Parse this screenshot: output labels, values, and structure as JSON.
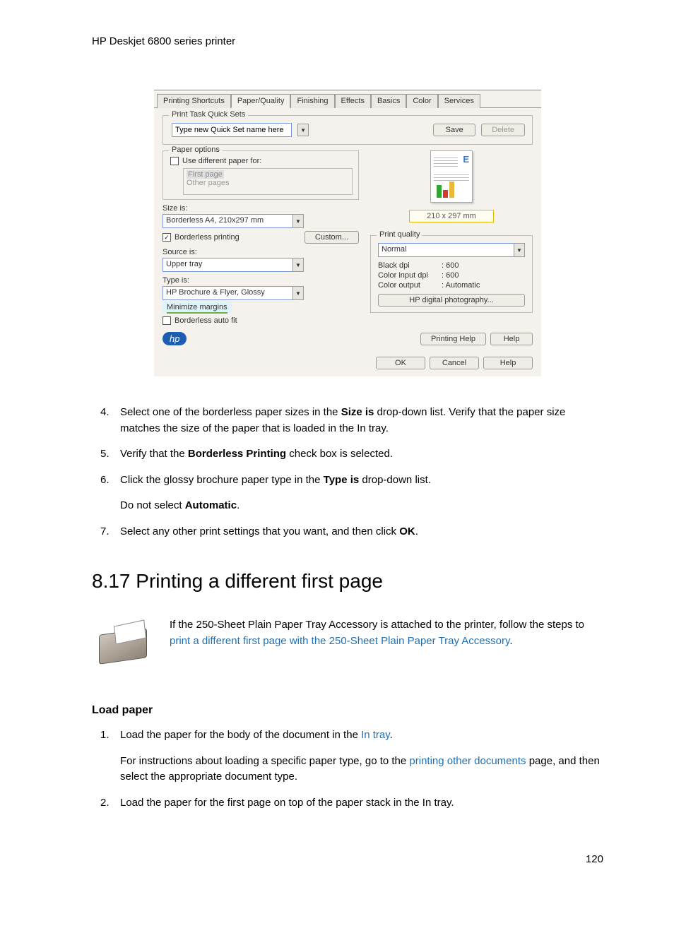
{
  "header": "HP Deskjet 6800 series printer",
  "dialog": {
    "tabs": [
      "Printing Shortcuts",
      "Paper/Quality",
      "Finishing",
      "Effects",
      "Basics",
      "Color",
      "Services"
    ],
    "active_tab": 1,
    "quickset": {
      "group": "Print Task Quick Sets",
      "placeholder": "Type new Quick Set name here",
      "save": "Save",
      "delete": "Delete"
    },
    "paper_options": {
      "group": "Paper options",
      "use_diff_label": "Use different paper for:",
      "first_page": "First page",
      "other_pages": "Other pages"
    },
    "size": {
      "label": "Size is:",
      "value": "Borderless A4, 210x297 mm",
      "borderless_label": "Borderless printing",
      "custom": "Custom..."
    },
    "source": {
      "label": "Source is:",
      "value": "Upper tray"
    },
    "type": {
      "label": "Type is:",
      "value": "HP Brochure & Flyer, Glossy"
    },
    "highlight_label": "Minimize margins",
    "borderless_auto": "Borderless auto fit",
    "dimensions": "210 x 297 mm",
    "print_quality": {
      "group": "Print quality",
      "value": "Normal",
      "rows": [
        {
          "k": "Black dpi",
          "v": ": 600"
        },
        {
          "k": "Color input dpi",
          "v": ": 600"
        },
        {
          "k": "Color output",
          "v": ": Automatic"
        }
      ],
      "hp_button": "HP digital photography..."
    },
    "logo": "hp",
    "printing_help": "Printing Help",
    "help": "Help",
    "ok": "OK",
    "cancel": "Cancel"
  },
  "steps_a": [
    {
      "n": "4.",
      "html": "Select one of the borderless paper sizes in the <b>Size is</b> drop-down list. Verify that the paper size matches the size of the paper that is loaded in the In tray."
    },
    {
      "n": "5.",
      "html": "Verify that the <b>Borderless Printing</b> check box is selected."
    },
    {
      "n": "6.",
      "html": "Click the glossy brochure paper type in the <b>Type is</b> drop-down list."
    },
    {
      "n": "",
      "html": "Do not select <b>Automatic</b>."
    },
    {
      "n": "7.",
      "html": "Select any other print settings that you want, and then click <b>OK</b>."
    }
  ],
  "section_title": "8.17  Printing a different first page",
  "intro": "If the 250-Sheet Plain Paper Tray Accessory is attached to the printer, follow the steps to ",
  "intro_link": "print a different first page with the 250-Sheet Plain Paper Tray Accessory",
  "load_paper": "Load paper",
  "steps_b": [
    {
      "n": "1.",
      "before": "Load the paper for the body of the document in the ",
      "link": "In tray",
      "after": "."
    },
    {
      "n": "",
      "before": "For instructions about loading a specific paper type, go to the ",
      "link": "printing other documents",
      "after": " page, and then select the appropriate document type."
    },
    {
      "n": "2.",
      "before": "Load the paper for the first page on top of the paper stack in the In tray.",
      "link": "",
      "after": ""
    }
  ],
  "page_num": "120"
}
